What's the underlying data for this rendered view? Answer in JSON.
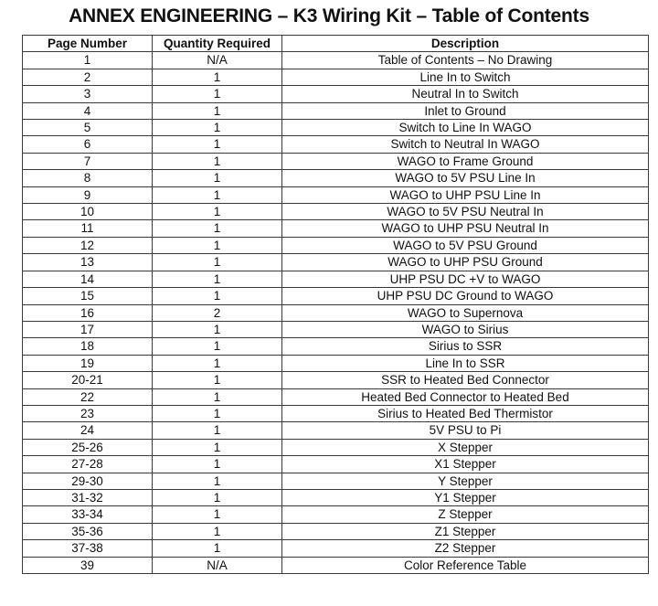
{
  "document": {
    "title": "ANNEX ENGINEERING – K3 Wiring Kit – Table of Contents"
  },
  "table": {
    "headers": [
      "Page Number",
      "Quantity Required",
      "Description"
    ],
    "rows": [
      {
        "page": "1",
        "qty": "N/A",
        "desc": "Table of Contents – No Drawing"
      },
      {
        "page": "2",
        "qty": "1",
        "desc": "Line In to Switch"
      },
      {
        "page": "3",
        "qty": "1",
        "desc": "Neutral In to Switch"
      },
      {
        "page": "4",
        "qty": "1",
        "desc": "Inlet to Ground"
      },
      {
        "page": "5",
        "qty": "1",
        "desc": "Switch to Line In WAGO"
      },
      {
        "page": "6",
        "qty": "1",
        "desc": "Switch to Neutral In WAGO"
      },
      {
        "page": "7",
        "qty": "1",
        "desc": "WAGO to Frame Ground"
      },
      {
        "page": "8",
        "qty": "1",
        "desc": "WAGO to 5V PSU Line In"
      },
      {
        "page": "9",
        "qty": "1",
        "desc": "WAGO to UHP PSU Line In"
      },
      {
        "page": "10",
        "qty": "1",
        "desc": "WAGO to 5V PSU Neutral In"
      },
      {
        "page": "11",
        "qty": "1",
        "desc": "WAGO to UHP PSU Neutral In"
      },
      {
        "page": "12",
        "qty": "1",
        "desc": "WAGO to 5V PSU Ground"
      },
      {
        "page": "13",
        "qty": "1",
        "desc": "WAGO to UHP PSU Ground"
      },
      {
        "page": "14",
        "qty": "1",
        "desc": "UHP PSU DC +V to WAGO"
      },
      {
        "page": "15",
        "qty": "1",
        "desc": "UHP PSU DC Ground to WAGO"
      },
      {
        "page": "16",
        "qty": "2",
        "desc": "WAGO to Supernova"
      },
      {
        "page": "17",
        "qty": "1",
        "desc": "WAGO to Sirius"
      },
      {
        "page": "18",
        "qty": "1",
        "desc": "Sirius to SSR"
      },
      {
        "page": "19",
        "qty": "1",
        "desc": "Line In to SSR"
      },
      {
        "page": "20-21",
        "qty": "1",
        "desc": "SSR to Heated Bed Connector"
      },
      {
        "page": "22",
        "qty": "1",
        "desc": "Heated Bed Connector to Heated Bed"
      },
      {
        "page": "23",
        "qty": "1",
        "desc": "Sirius to Heated Bed Thermistor"
      },
      {
        "page": "24",
        "qty": "1",
        "desc": "5V PSU to Pi"
      },
      {
        "page": "25-26",
        "qty": "1",
        "desc": "X Stepper"
      },
      {
        "page": "27-28",
        "qty": "1",
        "desc": "X1 Stepper"
      },
      {
        "page": "29-30",
        "qty": "1",
        "desc": "Y Stepper"
      },
      {
        "page": "31-32",
        "qty": "1",
        "desc": "Y1 Stepper"
      },
      {
        "page": "33-34",
        "qty": "1",
        "desc": "Z Stepper"
      },
      {
        "page": "35-36",
        "qty": "1",
        "desc": "Z1 Stepper"
      },
      {
        "page": "37-38",
        "qty": "1",
        "desc": "Z2 Stepper"
      },
      {
        "page": "39",
        "qty": "N/A",
        "desc": "Color Reference Table"
      }
    ]
  }
}
